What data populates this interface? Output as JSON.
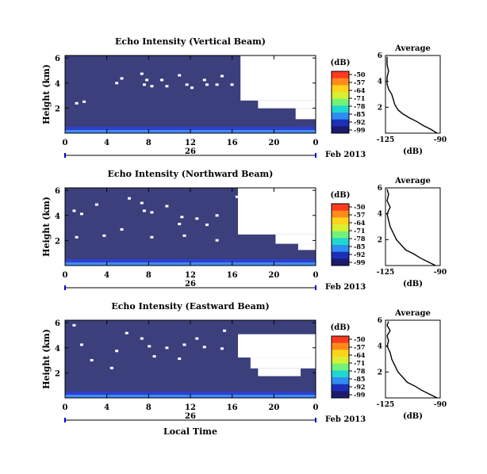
{
  "chart_data": [
    {
      "type": "heatmap",
      "title": "Echo Intensity (Vertical Beam)",
      "ylabel": "Height (km)",
      "y_ticks": [
        "6",
        "4",
        "2"
      ],
      "x_ticks": [
        "0",
        "4",
        "8",
        "12",
        "16",
        "20",
        "0"
      ],
      "date_day": "26",
      "date_month_year": "Feb 2013",
      "colorbar": {
        "unit": "(dB)",
        "ticks": [
          "-50",
          "-57",
          "-64",
          "-71",
          "-78",
          "-85",
          "-92",
          "-99"
        ]
      },
      "average_profile": {
        "title": "Average",
        "xlabel": "(dB)",
        "x_ticks": [
          "-125",
          "-90"
        ],
        "y_ticks": [
          "6",
          "4",
          "2"
        ],
        "xlim": [
          -125,
          -90
        ],
        "ylim": [
          0,
          6
        ],
        "points": [
          [
            -92,
            0
          ],
          [
            -96,
            0.3
          ],
          [
            -101,
            0.6
          ],
          [
            -105,
            0.9
          ],
          [
            -110,
            1.2
          ],
          [
            -114,
            1.5
          ],
          [
            -117,
            1.8
          ],
          [
            -119,
            2.2
          ],
          [
            -120,
            2.6
          ],
          [
            -121,
            3.0
          ],
          [
            -123,
            3.4
          ],
          [
            -124,
            3.8
          ],
          [
            -124,
            4.3
          ],
          [
            -123,
            4.8
          ],
          [
            -124,
            5.3
          ],
          [
            -124,
            5.9
          ]
        ]
      }
    },
    {
      "type": "heatmap",
      "title": "Echo Intensity (Northward Beam)",
      "ylabel": "Height (km)",
      "y_ticks": [
        "6",
        "4",
        "2"
      ],
      "x_ticks": [
        "0",
        "4",
        "8",
        "12",
        "16",
        "20",
        "0"
      ],
      "date_day": "26",
      "date_month_year": "Feb 2013",
      "colorbar": {
        "unit": "(dB)",
        "ticks": [
          "-50",
          "-57",
          "-64",
          "-71",
          "-78",
          "-85",
          "-92",
          "-99"
        ]
      },
      "average_profile": {
        "title": "Average",
        "xlabel": "(dB)",
        "x_ticks": [
          "-125",
          "-90"
        ],
        "y_ticks": [
          "6",
          "4",
          "2"
        ],
        "xlim": [
          -125,
          -90
        ],
        "ylim": [
          0,
          6
        ],
        "points": [
          [
            -93,
            0
          ],
          [
            -98,
            0.3
          ],
          [
            -103,
            0.6
          ],
          [
            -107,
            0.9
          ],
          [
            -112,
            1.2
          ],
          [
            -115,
            1.6
          ],
          [
            -118,
            2.0
          ],
          [
            -120,
            2.5
          ],
          [
            -122,
            3.0
          ],
          [
            -123,
            3.5
          ],
          [
            -124,
            4.0
          ],
          [
            -122,
            4.5
          ],
          [
            -124,
            5.0
          ],
          [
            -123,
            5.5
          ],
          [
            -124,
            5.9
          ]
        ]
      }
    },
    {
      "type": "heatmap",
      "title": "Echo Intensity (Eastward Beam)",
      "ylabel": "Height (km)",
      "y_ticks": [
        "6",
        "4",
        "2"
      ],
      "x_ticks": [
        "0",
        "4",
        "8",
        "12",
        "16",
        "20",
        "0"
      ],
      "date_day": "26",
      "date_month_year": "Feb 2013",
      "xlabel": "Local Time",
      "colorbar": {
        "unit": "(dB)",
        "ticks": [
          "-50",
          "-57",
          "-64",
          "-71",
          "-78",
          "-85",
          "-92",
          "-99"
        ]
      },
      "average_profile": {
        "title": "Average",
        "xlabel": "(dB)",
        "x_ticks": [
          "-125",
          "-90"
        ],
        "y_ticks": [
          "6",
          "4",
          "2"
        ],
        "xlim": [
          -125,
          -90
        ],
        "ylim": [
          0,
          6
        ],
        "points": [
          [
            -92,
            0
          ],
          [
            -97,
            0.3
          ],
          [
            -102,
            0.6
          ],
          [
            -106,
            0.9
          ],
          [
            -111,
            1.2
          ],
          [
            -114,
            1.6
          ],
          [
            -117,
            2.0
          ],
          [
            -119,
            2.5
          ],
          [
            -121,
            3.0
          ],
          [
            -122,
            3.5
          ],
          [
            -124,
            4.0
          ],
          [
            -123,
            4.4
          ],
          [
            -124,
            4.8
          ],
          [
            -122,
            5.2
          ],
          [
            -124,
            5.6
          ],
          [
            -123,
            5.9
          ]
        ]
      }
    }
  ],
  "colors": {
    "background_echo": "#3b3f7c",
    "colorbar": [
      "#ff3a1e",
      "#ff8a1a",
      "#ffd21c",
      "#d8ef32",
      "#73f27a",
      "#1fd7d2",
      "#2e8ef0",
      "#1c2fb8",
      "#1b1b6e"
    ]
  }
}
